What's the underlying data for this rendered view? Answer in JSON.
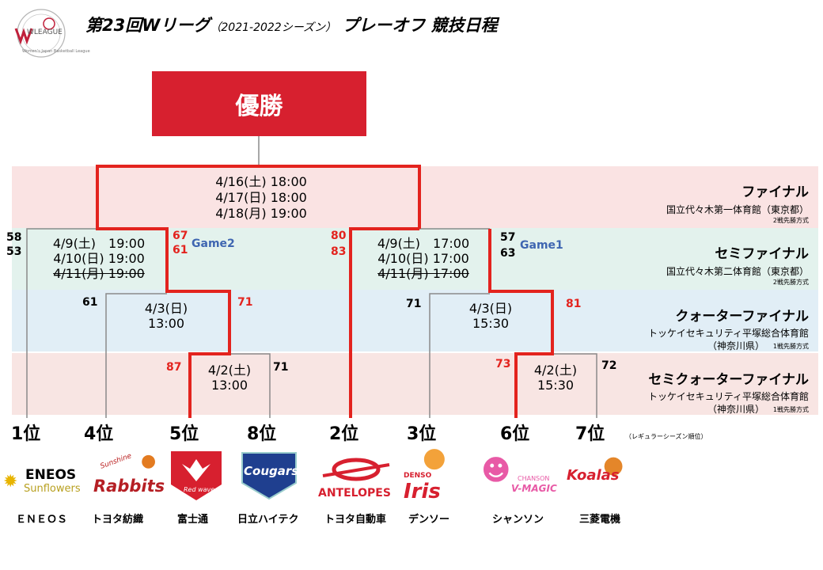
{
  "header": {
    "title": "第23回Wリーグ（2021-2022シーズン） プレーオフ 競技日程",
    "title_main": "第23回Wリーグ",
    "title_season": "（2021-2022シーズン）",
    "title_tail": "プレーオフ 競技日程",
    "logo_text": "WLEAGUE",
    "logo_sub": "Women's Japan Basketball League"
  },
  "champion": {
    "label": "優勝"
  },
  "rounds": {
    "final": {
      "name": "ファイナル",
      "venue": "国立代々木第一体育館（東京都）",
      "format": "2戦先勝方式",
      "dates": [
        "4/16(土) 18:00",
        "4/17(日) 18:00",
        "4/18(月) 19:00"
      ]
    },
    "semifinal": {
      "name": "セミファイナル",
      "venue": "国立代々木第二体育館（東京都）",
      "format": "2戦先勝方式",
      "left_dates": [
        "4/9(土)　19:00",
        "4/10(日) 19:00",
        "4/11(月) 19:00"
      ],
      "right_dates": [
        "4/9(土)　17:00",
        "4/10(日) 17:00",
        "4/11(月) 17:00"
      ],
      "left_scores_a": [
        "58",
        "53"
      ],
      "left_scores_b": [
        "67",
        "61"
      ],
      "left_game": "Game2",
      "right_scores_a": [
        "80",
        "83"
      ],
      "right_scores_b": [
        "57",
        "63"
      ],
      "right_game": "Game1"
    },
    "quarterfinal": {
      "name": "クォーターファイナル",
      "venue": "トッケイセキュリティ平塚総合体育館",
      "venue2": "（神奈川県）",
      "format": "1戦先勝方式",
      "left_date": "4/3(日)",
      "left_time": "13:00",
      "right_date": "4/3(日)",
      "right_time": "15:30",
      "left_score_a": "61",
      "left_score_b": "71",
      "right_score_a": "71",
      "right_score_b": "81"
    },
    "semiquarterfinal": {
      "name": "セミクォーターファイナル",
      "venue": "トッケイセキュリティ平塚総合体育館",
      "venue2": "（神奈川県）",
      "format": "1戦先勝方式",
      "left_date": "4/2(土)",
      "left_time": "13:00",
      "right_date": "4/2(土)",
      "right_time": "15:30",
      "left_score_a": "87",
      "left_score_b": "71",
      "right_score_a": "73",
      "right_score_b": "72"
    }
  },
  "ranks": [
    "1位",
    "4位",
    "5位",
    "8位",
    "2位",
    "3位",
    "6位",
    "7位"
  ],
  "ranks_note": "（レギュラーシーズン順位）",
  "teams": [
    {
      "name": "ＥＮＥＯＳ",
      "logo": "ENEOS",
      "logo_sub": "Sunflowers"
    },
    {
      "name": "トヨタ紡織",
      "logo": "Rabbits",
      "logo_sub": "Sunshine"
    },
    {
      "name": "富士通",
      "logo": "Red wave",
      "logo_sub": ""
    },
    {
      "name": "日立ハイテク",
      "logo": "Cougars",
      "logo_sub": ""
    },
    {
      "name": "トヨタ自動車",
      "logo": "ANTELOPES",
      "logo_sub": ""
    },
    {
      "name": "デンソー",
      "logo": "Iris",
      "logo_sub": "DENSO"
    },
    {
      "name": "シャンソン",
      "logo": "V-MAGIC",
      "logo_sub": "CHANSON"
    },
    {
      "name": "三菱電機",
      "logo": "Koalas",
      "logo_sub": ""
    }
  ],
  "colors": {
    "accent_red": "#e3231e",
    "champion_red": "#d7202f",
    "band_final": "#fae3e3",
    "band_semi": "#e3f2ed",
    "band_quarter": "#e1eef6",
    "band_semiquarter": "#f8e5e3",
    "game_blue": "#3f66b1"
  }
}
